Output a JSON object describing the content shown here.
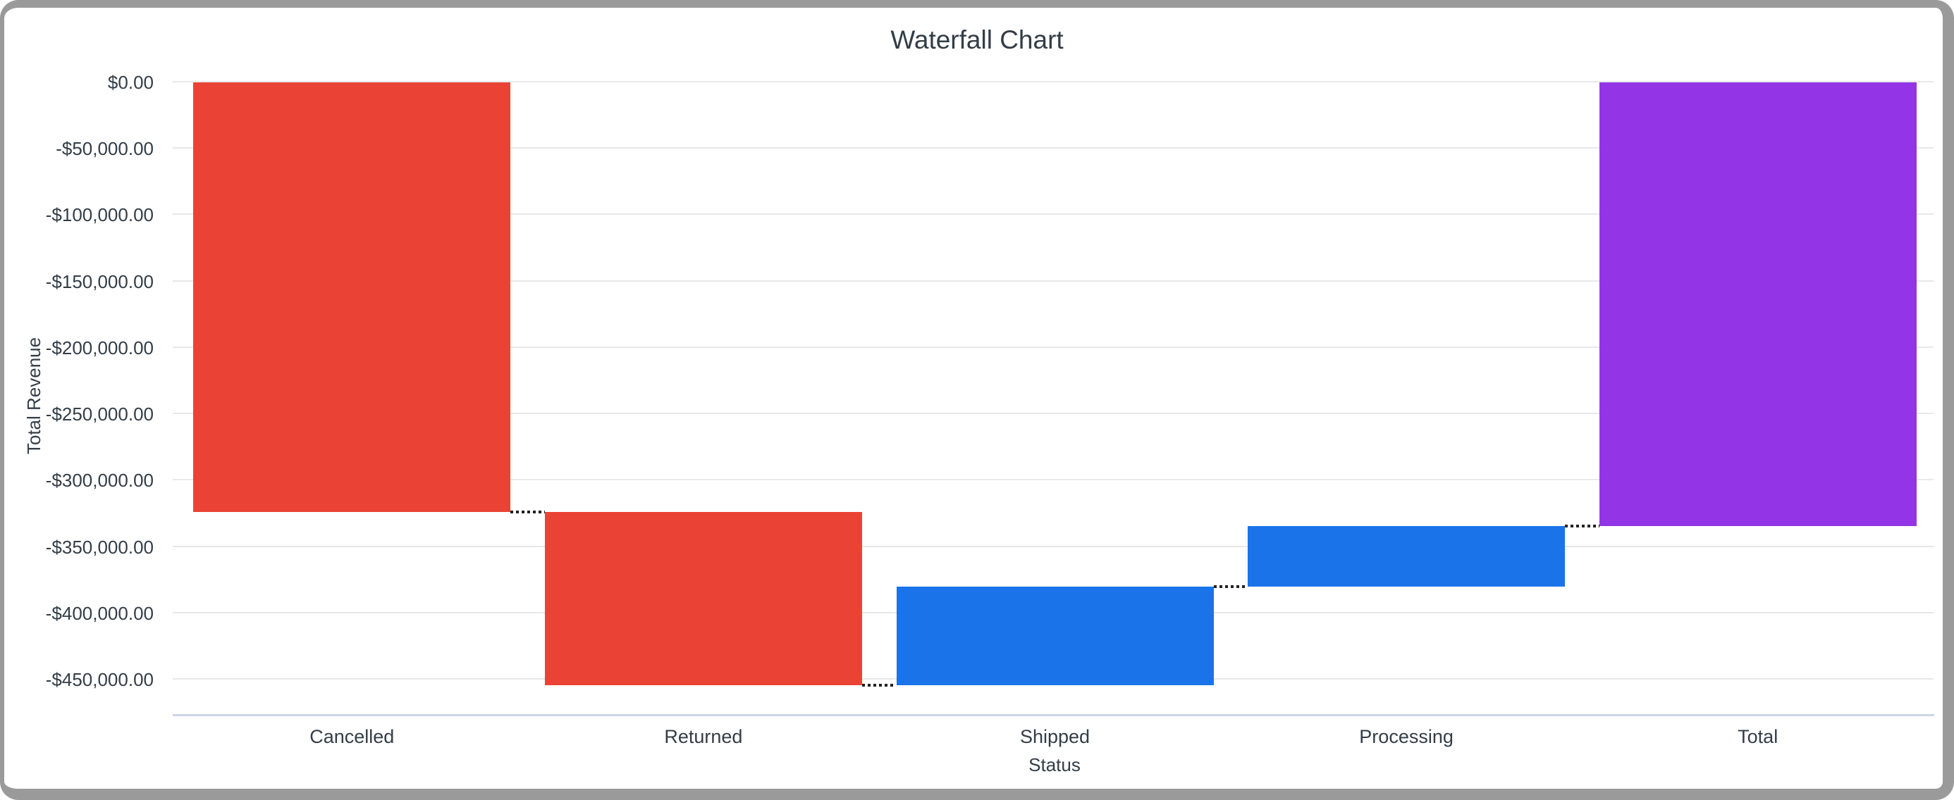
{
  "window": {
    "frame_color": "#9A9A9A",
    "background_color": "#FFFFFF"
  },
  "chart_data": {
    "type": "waterfall",
    "title": "Waterfall Chart",
    "xlabel": "Status",
    "ylabel": "Total Revenue",
    "categories": [
      "Cancelled",
      "Returned",
      "Shipped",
      "Processing",
      "Total"
    ],
    "bars": [
      {
        "label": "Cancelled",
        "kind": "decrease",
        "start": 0,
        "end": -323700,
        "delta": -323700
      },
      {
        "label": "Returned",
        "kind": "decrease",
        "start": -323700,
        "end": -454100,
        "delta": -130400
      },
      {
        "label": "Shipped",
        "kind": "increase",
        "start": -454100,
        "end": -379900,
        "delta": 74200
      },
      {
        "label": "Processing",
        "kind": "increase",
        "start": -379900,
        "end": -334300,
        "delta": 45600
      },
      {
        "label": "Total",
        "kind": "total",
        "start": 0,
        "end": -334300,
        "delta": -334300
      }
    ],
    "y_axis": {
      "min": -477000,
      "max": 0,
      "tick_step": 50000,
      "ticks": [
        {
          "value": 0,
          "label": "$0.00"
        },
        {
          "value": -50000,
          "label": "-$50,000.00"
        },
        {
          "value": -100000,
          "label": "-$100,000.00"
        },
        {
          "value": -150000,
          "label": "-$150,000.00"
        },
        {
          "value": -200000,
          "label": "-$200,000.00"
        },
        {
          "value": -250000,
          "label": "-$250,000.00"
        },
        {
          "value": -300000,
          "label": "-$300,000.00"
        },
        {
          "value": -350000,
          "label": "-$350,000.00"
        },
        {
          "value": -400000,
          "label": "-$400,000.00"
        },
        {
          "value": -450000,
          "label": "-$450,000.00"
        }
      ]
    },
    "legend": false,
    "grid": true,
    "palette": {
      "decrease": "#EA4335",
      "increase": "#1A73E8",
      "total": "#9334E6"
    },
    "colors": {
      "gridline": "#E8E8E8",
      "baseline": "#CCD5E5",
      "connector": "#222222",
      "text": "#333D47"
    }
  }
}
